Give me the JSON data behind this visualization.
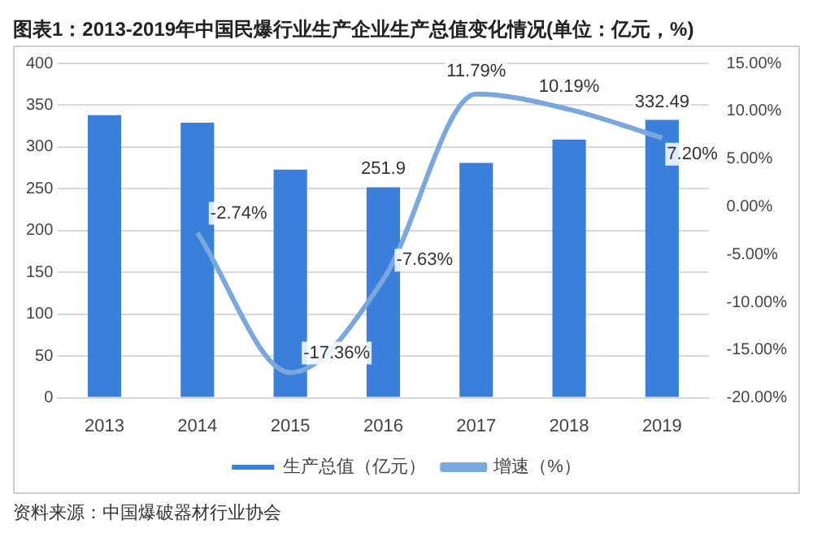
{
  "chart_data": {
    "type": "bar",
    "title": "图表1：2013-2019年中国民爆行业生产企业生产总值变化情况(单位：亿元，%)",
    "categories": [
      "2013",
      "2014",
      "2015",
      "2016",
      "2017",
      "2018",
      "2019"
    ],
    "series": [
      {
        "name": "生产总值（亿元）",
        "color": "#3a7fd9",
        "values": [
          338,
          329,
          273,
          251.9,
          281,
          309,
          332.49
        ],
        "value_labels": [
          null,
          null,
          null,
          "251.9",
          null,
          null,
          "332.49"
        ]
      },
      {
        "name": "增速（%）",
        "type": "line",
        "axis": "y2",
        "color": "#7aa7dc",
        "values": [
          null,
          -2.74,
          -17.36,
          -7.63,
          11.79,
          10.19,
          7.2
        ],
        "value_labels": [
          null,
          "-2.74%",
          "-17.36%",
          "-7.63%",
          "11.79%",
          "10.19%",
          "7.20%"
        ]
      }
    ],
    "ylim": [
      0,
      400
    ],
    "yticks": [
      0,
      50,
      100,
      150,
      200,
      250,
      300,
      350,
      400
    ],
    "y2lim": [
      -20,
      15
    ],
    "y2ticks": [
      {
        "value": -20,
        "label": "-20.00%"
      },
      {
        "value": -15,
        "label": "-15.00%"
      },
      {
        "value": -10,
        "label": "-10.00%"
      },
      {
        "value": -5,
        "label": "-5.00%"
      },
      {
        "value": 0,
        "label": "0.00%"
      },
      {
        "value": 5,
        "label": "5.00%"
      },
      {
        "value": 10,
        "label": "10.00%"
      },
      {
        "value": 15,
        "label": "15.00%"
      }
    ],
    "grid": "y",
    "legend": "bottom",
    "marker": "none",
    "line_style": "solid",
    "annotations": [
      "资料来源：中国爆破器材行业协会"
    ]
  }
}
